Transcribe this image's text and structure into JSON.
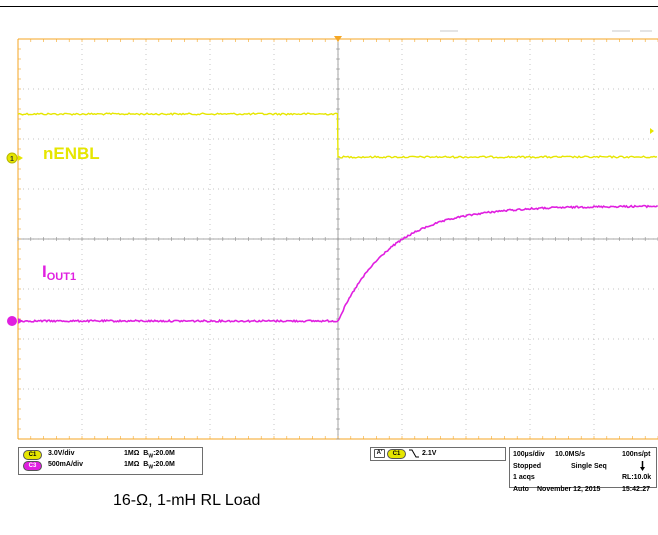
{
  "colors": {
    "ch1": "#e6e600",
    "ch3": "#e020e0",
    "graticule": "#b0b0b0",
    "frame": "#f5a623",
    "background": "#ffffff"
  },
  "traces": {
    "ch1_label": "nENBL",
    "ch3_label_main": "I",
    "ch3_label_sub": "OUT1",
    "ch1_marker": "1"
  },
  "channels": [
    {
      "badge": "C1",
      "scale": "3.0V/div",
      "impedance": "1MΩ",
      "bw_prefix": "B",
      "bw_sub": "W",
      "bw_value": ":20.0M",
      "color": "#e6e600"
    },
    {
      "badge": "C3",
      "scale": "500mA/div",
      "impedance": "1MΩ",
      "bw_prefix": "B",
      "bw_sub": "W",
      "bw_value": ":20.0M",
      "color": "#e020e0"
    }
  ],
  "trigger": {
    "type_badge": "A'",
    "source": "C1",
    "slope_icon": "falling-edge",
    "level": "2.1V"
  },
  "acquisition": {
    "timebase": "100µs/div",
    "sample_rate": "10.0MS/s",
    "resolution": "100ns/pt",
    "state": "Stopped",
    "mode": "Single Seq",
    "acqs": "1 acqs",
    "record_length": "RL:10.0k",
    "trigger_mode": "Auto",
    "date": "November 12, 2015",
    "time": "15:42:27"
  },
  "caption": "16-Ω, 1-mH RL Load"
}
